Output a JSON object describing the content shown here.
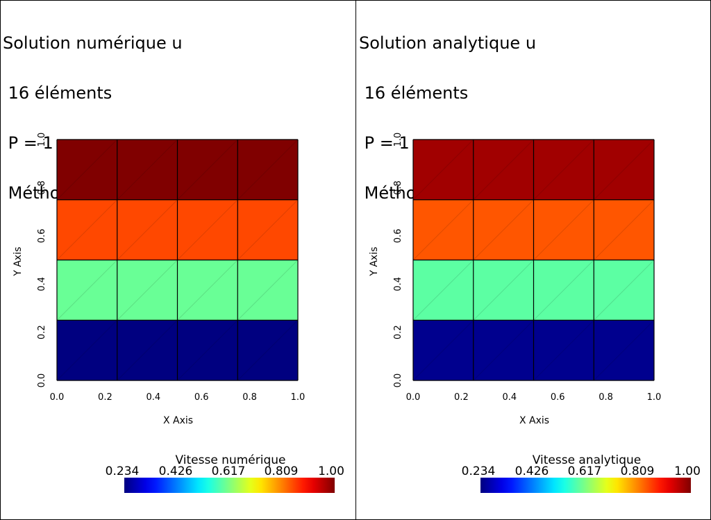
{
  "panels": [
    {
      "title_lines": [
        "Solution numérique u",
        " 16 éléments",
        " P = 1",
        " Méthode = CENTRE"
      ],
      "colorbar": {
        "title": "Vitesse numérique",
        "ticks": [
          "0.234",
          "0.426",
          "0.617",
          "0.809",
          "1.00"
        ]
      }
    },
    {
      "title_lines": [
        "Solution analytique u",
        " 16 éléments",
        " P = 1",
        " Méthode = CENTRE"
      ],
      "colorbar": {
        "title": "Vitesse analytique",
        "ticks": [
          "0.234",
          "0.426",
          "0.617",
          "0.809",
          "1.00"
        ]
      }
    }
  ],
  "chart_data": [
    {
      "type": "heatmap",
      "title": "Solution numérique u",
      "xlabel": "X Axis",
      "ylabel": "Y Axis",
      "xlim": [
        0.0,
        1.0
      ],
      "ylim": [
        0.0,
        1.0
      ],
      "x_ticks": [
        "0.0",
        "0.2",
        "0.4",
        "0.6",
        "0.8",
        "1.0"
      ],
      "y_ticks": [
        "0.0",
        "0.2",
        "0.4",
        "0.6",
        "0.8",
        "1.0"
      ],
      "grid_cols": 4,
      "grid_rows": 4,
      "row_values_bottom_to_top": [
        0.234,
        0.6,
        0.85,
        1.0
      ],
      "colormap": "jet",
      "colorbar_range": [
        0.234,
        1.0
      ],
      "colorbar_title": "Vitesse numérique"
    },
    {
      "type": "heatmap",
      "title": "Solution analytique u",
      "xlabel": "X Axis",
      "ylabel": "Y Axis",
      "xlim": [
        0.0,
        1.0
      ],
      "ylim": [
        0.0,
        1.0
      ],
      "x_ticks": [
        "0.0",
        "0.2",
        "0.4",
        "0.6",
        "0.8",
        "1.0"
      ],
      "y_ticks": [
        "0.0",
        "0.2",
        "0.4",
        "0.6",
        "0.8",
        "1.0"
      ],
      "grid_cols": 4,
      "grid_rows": 4,
      "row_values_bottom_to_top": [
        0.245,
        0.59,
        0.84,
        0.975
      ],
      "colormap": "jet",
      "colorbar_range": [
        0.234,
        1.0
      ],
      "colorbar_title": "Vitesse analytique"
    }
  ]
}
